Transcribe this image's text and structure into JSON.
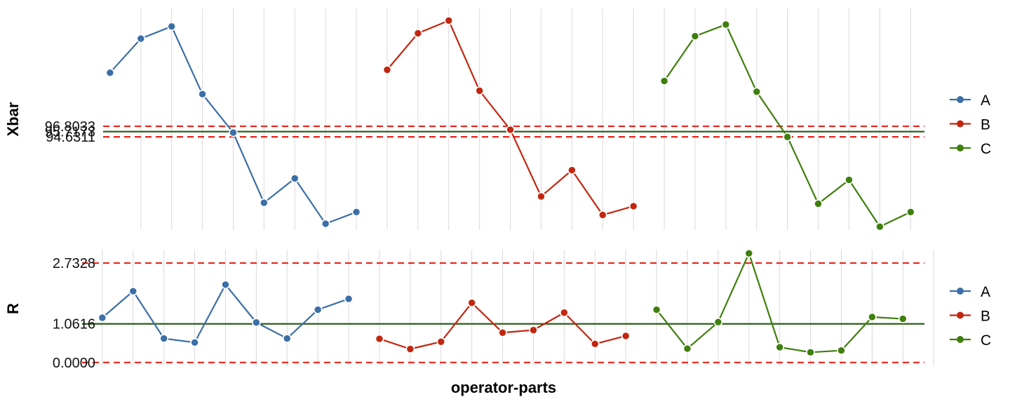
{
  "chart_data": [
    {
      "type": "line",
      "ylabel": "Xbar",
      "xlabel": "",
      "yticks": [
        "96.8033",
        "95.7173",
        "94.6311"
      ],
      "ylim": [
        75.5,
        121
      ],
      "series": [
        {
          "name": "A",
          "color": "#3b6fa6",
          "x": [
            1,
            2,
            3,
            4,
            5,
            6,
            7,
            8,
            9
          ],
          "values": [
            107.8,
            114.8,
            117.3,
            103.4,
            95.5,
            81.1,
            86.1,
            76.8,
            79.2
          ]
        },
        {
          "name": "B",
          "color": "#c3260f",
          "x": [
            10,
            11,
            12,
            13,
            14,
            15,
            16,
            17,
            18
          ],
          "values": [
            108.4,
            115.9,
            118.5,
            104.1,
            96.1,
            82.4,
            87.8,
            78.6,
            80.4
          ]
        },
        {
          "name": "C",
          "color": "#3f7f0e",
          "x": [
            19,
            20,
            21,
            22,
            23,
            24,
            25,
            26,
            27
          ],
          "values": [
            106.1,
            115.3,
            117.7,
            103.9,
            94.6,
            80.9,
            85.8,
            76.2,
            79.2
          ]
        }
      ],
      "reference_lines": [
        {
          "value": 96.8033,
          "style": "dashed",
          "color": "#e8221b"
        },
        {
          "value": 95.7173,
          "style": "solid",
          "color": "#2d5f1a"
        },
        {
          "value": 94.6311,
          "style": "dashed",
          "color": "#e8221b"
        }
      ],
      "grid": "vertical",
      "legend_position": "right"
    },
    {
      "type": "line",
      "ylabel": "R",
      "xlabel": "operator-parts",
      "yticks": [
        "2.7328",
        "1.0616",
        "0.0000"
      ],
      "ylim": [
        -0.1,
        3.1
      ],
      "series": [
        {
          "name": "A",
          "color": "#3b6fa6",
          "x": [
            1,
            2,
            3,
            4,
            5,
            6,
            7,
            8,
            9
          ],
          "values": [
            1.23,
            1.96,
            0.66,
            0.55,
            2.14,
            1.1,
            0.66,
            1.45,
            1.75
          ]
        },
        {
          "name": "B",
          "color": "#c3260f",
          "x": [
            10,
            11,
            12,
            13,
            14,
            15,
            16,
            17,
            18
          ],
          "values": [
            0.65,
            0.37,
            0.57,
            1.64,
            0.82,
            0.89,
            1.37,
            0.51,
            0.73
          ]
        },
        {
          "name": "C",
          "color": "#3f7f0e",
          "x": [
            19,
            20,
            21,
            22,
            23,
            24,
            25,
            26,
            27
          ],
          "values": [
            1.45,
            0.38,
            1.11,
            3.0,
            0.42,
            0.28,
            0.33,
            1.25,
            1.2
          ]
        }
      ],
      "reference_lines": [
        {
          "value": 2.7328,
          "style": "dashed",
          "color": "#e8221b"
        },
        {
          "value": 1.0616,
          "style": "solid",
          "color": "#2d5f1a"
        },
        {
          "value": 0.0,
          "style": "dashed",
          "color": "#e8221b"
        }
      ],
      "grid": "vertical",
      "legend_position": "right"
    }
  ],
  "legend": {
    "entries": [
      {
        "label": "A",
        "color": "#3b6fa6"
      },
      {
        "label": "B",
        "color": "#c3260f"
      },
      {
        "label": "C",
        "color": "#3f7f0e"
      }
    ]
  }
}
